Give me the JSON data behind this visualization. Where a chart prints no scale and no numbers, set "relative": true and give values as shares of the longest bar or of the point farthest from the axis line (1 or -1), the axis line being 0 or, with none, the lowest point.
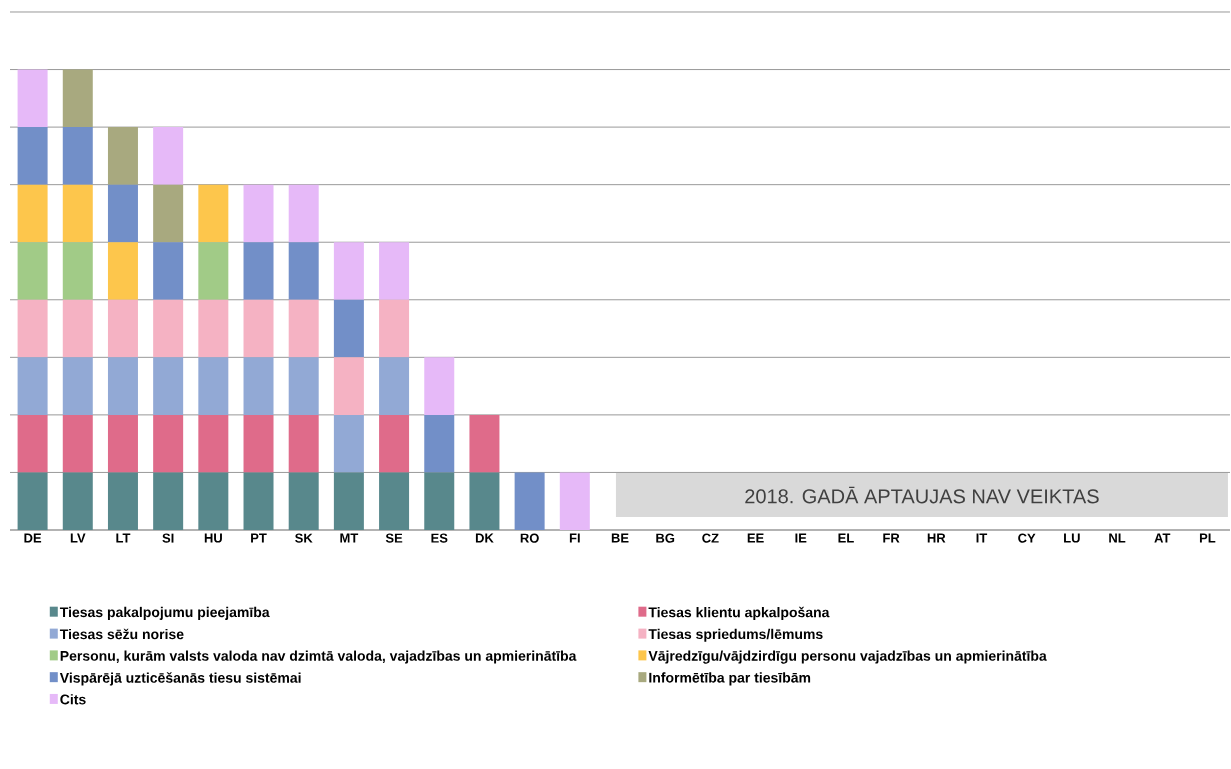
{
  "chart_data": {
    "type": "bar",
    "stacked": true,
    "relative": true,
    "grid": "y",
    "legend": "bottom",
    "categories": [
      "DE",
      "LV",
      "LT",
      "SI",
      "HU",
      "PT",
      "SK",
      "MT",
      "SE",
      "ES",
      "DK",
      "RO",
      "FI",
      "BE",
      "BG",
      "CZ",
      "EE",
      "IE",
      "EL",
      "FR",
      "HR",
      "IT",
      "CY",
      "LU",
      "NL",
      "AT",
      "PL"
    ],
    "series": [
      {
        "name": "Tiesas pakalpojumu pieejamība",
        "color": "#58888c",
        "values": [
          0.125,
          0.125,
          0.125,
          0.125,
          0.125,
          0.125,
          0.125,
          0.125,
          0.125,
          0.125,
          0.125,
          0,
          0,
          0,
          0,
          0,
          0,
          0,
          0,
          0,
          0,
          0,
          0,
          0,
          0,
          0,
          0
        ]
      },
      {
        "name": "Tiesas klientu apkalpošana",
        "color": "#df6b8a",
        "values": [
          0.125,
          0.125,
          0.125,
          0.125,
          0.125,
          0.125,
          0.125,
          0,
          0.125,
          0,
          0.125,
          0,
          0,
          0,
          0,
          0,
          0,
          0,
          0,
          0,
          0,
          0,
          0,
          0,
          0,
          0,
          0
        ]
      },
      {
        "name": "Tiesas sēžu norise",
        "color": "#92a9d5",
        "values": [
          0.125,
          0.125,
          0.125,
          0.125,
          0.125,
          0.125,
          0.125,
          0.125,
          0.125,
          0,
          0,
          0,
          0,
          0,
          0,
          0,
          0,
          0,
          0,
          0,
          0,
          0,
          0,
          0,
          0,
          0,
          0
        ]
      },
      {
        "name": "Tiesas spriedums/lēmums",
        "color": "#f5b2c3",
        "values": [
          0.125,
          0.125,
          0.125,
          0.125,
          0.125,
          0.125,
          0.125,
          0.125,
          0.125,
          0,
          0,
          0,
          0,
          0,
          0,
          0,
          0,
          0,
          0,
          0,
          0,
          0,
          0,
          0,
          0,
          0,
          0
        ]
      },
      {
        "name": "Personu, kurām valsts valoda nav dzimtā valoda, vajadzības un apmierinātība",
        "color": "#a1cb87",
        "values": [
          0.125,
          0.125,
          0,
          0,
          0.125,
          0,
          0,
          0,
          0,
          0,
          0,
          0,
          0,
          0,
          0,
          0,
          0,
          0,
          0,
          0,
          0,
          0,
          0,
          0,
          0,
          0,
          0
        ]
      },
      {
        "name": "Vājredzīgu/vājdzirdīgu personu vajadzības un apmierinātība",
        "color": "#fdc64c",
        "values": [
          0.125,
          0.125,
          0.125,
          0,
          0.125,
          0,
          0,
          0,
          0,
          0,
          0,
          0,
          0,
          0,
          0,
          0,
          0,
          0,
          0,
          0,
          0,
          0,
          0,
          0,
          0,
          0,
          0
        ]
      },
      {
        "name": "Vispārējā uzticēšanās tiesu sistēmai",
        "color": "#728fc8",
        "values": [
          0.125,
          0.125,
          0.125,
          0.125,
          0,
          0.125,
          0.125,
          0.125,
          0,
          0.125,
          0,
          0.125,
          0,
          0,
          0,
          0,
          0,
          0,
          0,
          0,
          0,
          0,
          0,
          0,
          0,
          0,
          0
        ]
      },
      {
        "name": "Informētība par tiesībām",
        "color": "#a8a97f",
        "values": [
          0,
          0.125,
          0.125,
          0.125,
          0,
          0,
          0,
          0,
          0,
          0,
          0,
          0,
          0,
          0,
          0,
          0,
          0,
          0,
          0,
          0,
          0,
          0,
          0,
          0,
          0,
          0,
          0
        ]
      },
      {
        "name": "Cits",
        "color": "#e6b9f8",
        "values": [
          0.125,
          0,
          0,
          0.125,
          0,
          0.125,
          0.125,
          0.125,
          0.125,
          0.125,
          0,
          0,
          0.125,
          0,
          0,
          0,
          0,
          0,
          0,
          0,
          0,
          0,
          0,
          0,
          0,
          0,
          0
        ]
      }
    ],
    "annotations": [
      "2018. GADĀ APTAUJAS NAV VEIKTAS"
    ]
  }
}
